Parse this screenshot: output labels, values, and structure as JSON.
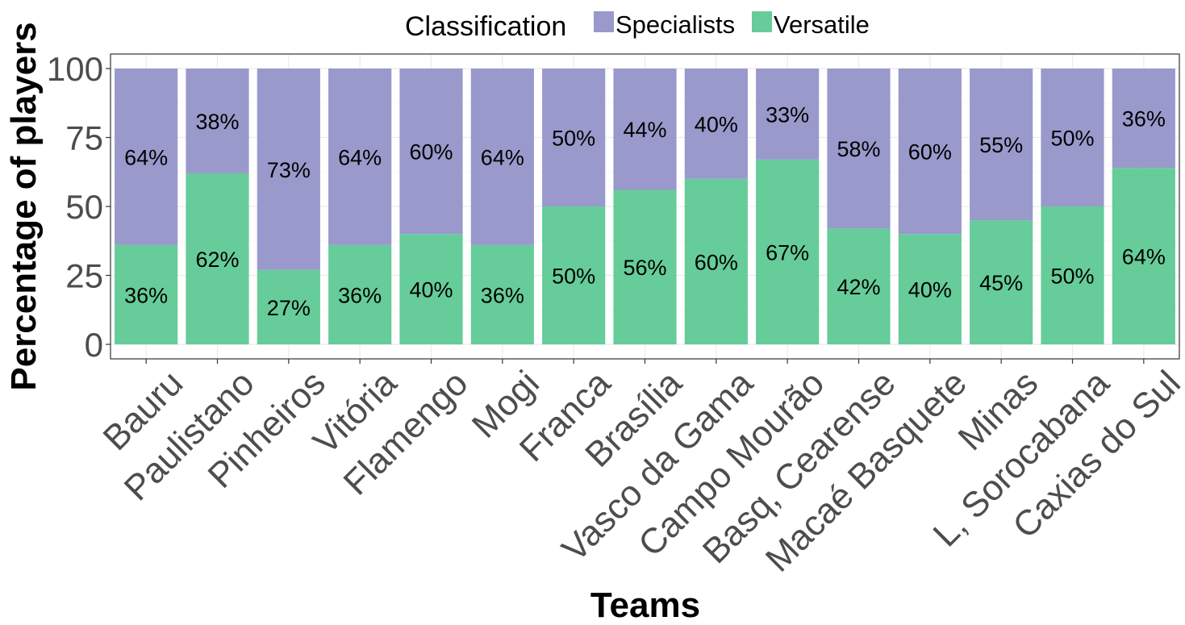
{
  "chart_data": {
    "type": "bar",
    "stacked": true,
    "categories": [
      "Bauru",
      "Paulistano",
      "Pinheiros",
      "Vitória",
      "Flamengo",
      "Mogi",
      "Franca",
      "Brasília",
      "Vasco da Gama",
      "Campo Mourão",
      "Basq, Cearense",
      "Macaé Basquete",
      "Minas",
      "L, Sorocabana",
      "Caxias do Sul"
    ],
    "series": [
      {
        "name": "Versatile",
        "color": "#66cc99",
        "values": [
          36,
          62,
          27,
          36,
          40,
          36,
          50,
          56,
          60,
          67,
          42,
          40,
          45,
          50,
          64
        ],
        "labels": [
          "36%",
          "62%",
          "27%",
          "36%",
          "40%",
          "36%",
          "50%",
          "56%",
          "60%",
          "67%",
          "42%",
          "40%",
          "45%",
          "50%",
          "64%"
        ]
      },
      {
        "name": "Specialists",
        "color": "#9999cc",
        "values": [
          64,
          38,
          73,
          64,
          60,
          64,
          50,
          44,
          40,
          33,
          58,
          60,
          55,
          50,
          36
        ],
        "labels": [
          "64%",
          "38%",
          "73%",
          "64%",
          "60%",
          "64%",
          "50%",
          "44%",
          "40%",
          "33%",
          "58%",
          "60%",
          "55%",
          "50%",
          "36%"
        ]
      }
    ],
    "legend_title": "Classification",
    "legend_order": [
      "Specialists",
      "Versatile"
    ],
    "legend_position": "top",
    "xlabel": "Teams",
    "ylabel": "Percentage of players",
    "yticks": [
      0,
      25,
      50,
      75,
      100
    ],
    "ytick_labels": [
      "0",
      "25",
      "50",
      "75",
      "100"
    ],
    "ylim": [
      -5,
      105
    ],
    "grid": true
  }
}
